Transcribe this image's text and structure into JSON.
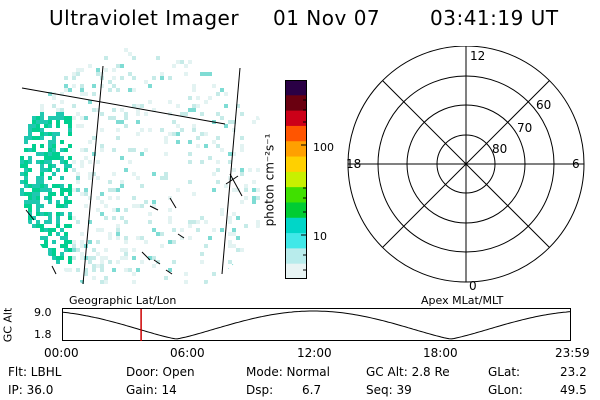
{
  "header": {
    "instrument": "Ultraviolet Imager",
    "date": "01 Nov 07",
    "time": "03:41:19 UT"
  },
  "colorbar": {
    "unit_label": "photon cm⁻²s⁻¹",
    "ticks": [
      "100",
      "10"
    ],
    "colors": [
      "#2a0045",
      "#6a0010",
      "#cc0018",
      "#ff5500",
      "#ffa000",
      "#ffd000",
      "#c8f000",
      "#40e000",
      "#00cc33",
      "#00d6c8",
      "#40e8e8",
      "#b8ecec",
      "#e8f4f4"
    ]
  },
  "geo_map": {
    "label": "Geographic Lat/Lon",
    "point_color": "#20c8b0",
    "dense_color": "#00d090"
  },
  "polar_plot": {
    "label": "Apex MLat/MLT",
    "lat_labels": [
      "60",
      "70",
      "80"
    ],
    "mlt_labels": {
      "top": "12",
      "left": "18",
      "right": "6",
      "bottom": "0"
    }
  },
  "orbit": {
    "ylabel": "GC Alt",
    "ytick_top": "9.0",
    "ytick_bottom": "1.8",
    "x_ticks": [
      "00:00",
      "06:00",
      "12:00",
      "18:00",
      "23:59"
    ],
    "current_time_hours": 3.69,
    "marker_color": "#cc0000"
  },
  "status": {
    "filter": "Flt: LBHL",
    "ip": "IP: 36.0",
    "door": "Door: Open",
    "gain": "Gain: 14",
    "mode": "Mode: Normal",
    "dsp_label": "Dsp:",
    "dsp_value": "6.7",
    "gc_alt": "GC Alt: 2.8 Re",
    "seq": "Seq: 39",
    "glat_label": "GLat:",
    "glat_value": "23.2",
    "glon_label": "GLon:",
    "glon_value": "49.5"
  }
}
